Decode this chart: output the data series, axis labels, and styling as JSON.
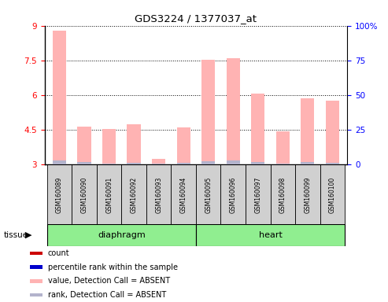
{
  "title": "GDS3224 / 1377037_at",
  "samples": [
    "GSM160089",
    "GSM160090",
    "GSM160091",
    "GSM160092",
    "GSM160093",
    "GSM160094",
    "GSM160095",
    "GSM160096",
    "GSM160097",
    "GSM160098",
    "GSM160099",
    "GSM160100"
  ],
  "pink_values": [
    8.8,
    4.65,
    4.55,
    4.75,
    3.25,
    4.6,
    7.52,
    7.6,
    6.07,
    4.45,
    5.85,
    5.75
  ],
  "blue_values": [
    3.18,
    3.12,
    3.05,
    3.08,
    3.04,
    3.09,
    3.14,
    3.18,
    3.12,
    3.06,
    3.1,
    3.07
  ],
  "ylim_left": [
    3,
    9
  ],
  "ylim_right": [
    0,
    100
  ],
  "yticks_left": [
    3,
    4.5,
    6,
    7.5,
    9
  ],
  "yticks_right": [
    0,
    25,
    50,
    75,
    100
  ],
  "ytick_labels_left": [
    "3",
    "4.5",
    "6",
    "7.5",
    "9"
  ],
  "ytick_labels_right": [
    "0",
    "25",
    "50",
    "75",
    "100%"
  ],
  "diaphragm_samples": 6,
  "heart_samples": 6,
  "tissue_label": "tissue",
  "pink_color": "#ffb3b3",
  "blue_color": "#b3b3cc",
  "sample_box_color": "#d0d0d0",
  "tissue_green": "#90ee90",
  "legend_items": [
    {
      "color": "#cc0000",
      "label": "count"
    },
    {
      "color": "#0000cc",
      "label": "percentile rank within the sample"
    },
    {
      "color": "#ffb3b3",
      "label": "value, Detection Call = ABSENT"
    },
    {
      "color": "#b3b3cc",
      "label": "rank, Detection Call = ABSENT"
    }
  ]
}
